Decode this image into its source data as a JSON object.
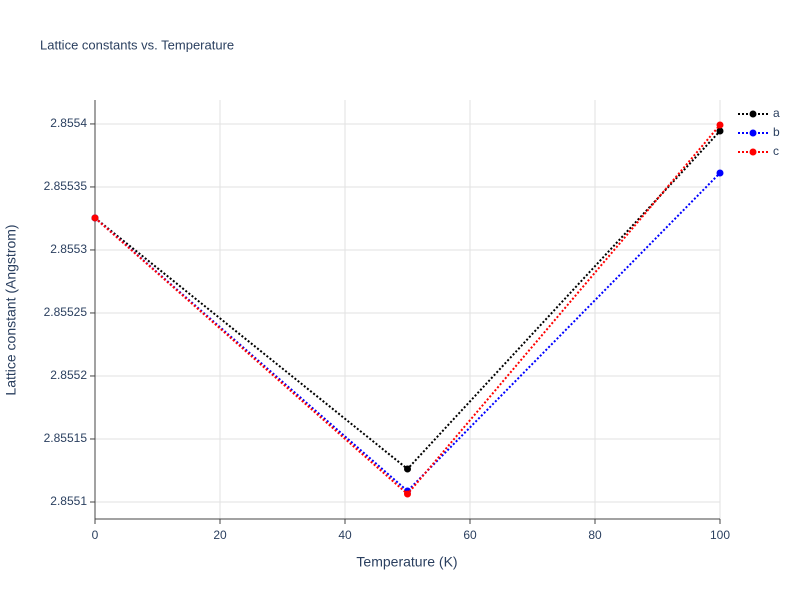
{
  "chart_data": {
    "type": "line",
    "title": "Lattice constants vs. Temperature",
    "x_label": "Temperature (K)",
    "y_label": "Lattice constant (Angstrom)",
    "x": [
      0,
      50,
      100
    ],
    "series": [
      {
        "name": "a",
        "color": "#000000",
        "values": [
          2.8553254,
          2.8551262,
          2.8553944
        ]
      },
      {
        "name": "b",
        "color": "#0000ff",
        "values": [
          2.8553254,
          2.8551087,
          2.8553611
        ]
      },
      {
        "name": "c",
        "color": "#ff0000",
        "values": [
          2.8553254,
          2.8551063,
          2.8553992
        ]
      }
    ],
    "xlim": [
      0,
      100
    ],
    "xticks": [
      0,
      20,
      40,
      60,
      80,
      100
    ],
    "ylim": [
      2.8550865,
      2.855419
    ],
    "yticks": [
      2.8551,
      2.85515,
      2.8552,
      2.85525,
      2.8553,
      2.85535,
      2.8554
    ],
    "grid": true,
    "legend": "top-right"
  }
}
